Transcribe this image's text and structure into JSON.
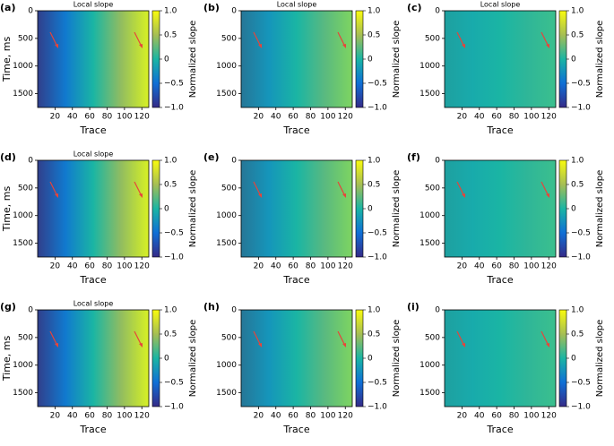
{
  "chart_data": [
    {
      "type": "heatmap",
      "label": "(a)",
      "title": "Local slope",
      "xlabel": "Trace",
      "ylabel": "Time, ms",
      "xlim": [
        0,
        128
      ],
      "xticks": [
        20,
        40,
        60,
        80,
        100,
        120
      ],
      "ylim": [
        0,
        1750
      ],
      "invert_y": true,
      "yticks": [
        0,
        500,
        1000,
        1500
      ],
      "colorbar_label": "Normalized slope",
      "clim": [
        -1,
        1
      ],
      "cticks": [
        {
          "value": 1,
          "label": "1.0"
        },
        0.5,
        0,
        {
          "value": -0.5,
          "label": "−0.5"
        },
        {
          "value": -1,
          "label": "−1.0"
        }
      ],
      "colormap": [
        "#352a87",
        "#0f6fd6",
        "#1ab5a4",
        "#a6be54",
        "#f9fb0e"
      ]
    },
    {
      "type": "heatmap",
      "label": "(b)",
      "title": "Local slope",
      "xlabel": "Trace",
      "xlim": [
        0,
        128
      ],
      "xticks": [
        20,
        40,
        60,
        80,
        100,
        120
      ],
      "ylim": [
        0,
        1750
      ],
      "invert_y": true,
      "yticks": [
        0,
        500,
        1000,
        1500
      ],
      "colorbar_label": "Normalized slope",
      "clim": [
        -1,
        1
      ],
      "cticks": [
        {
          "value": 1,
          "label": "1.0"
        },
        0.5,
        0,
        {
          "value": -0.5,
          "label": "−0.5"
        },
        {
          "value": -1,
          "label": "−1.0"
        }
      ],
      "colormap": [
        "#352a87",
        "#0f6fd6",
        "#1ab5a4",
        "#a6be54",
        "#f9fb0e"
      ]
    },
    {
      "type": "heatmap",
      "label": "(c)",
      "title": "Local slope",
      "xlabel": "Trace",
      "xlim": [
        0,
        128
      ],
      "xticks": [
        20,
        40,
        60,
        80,
        100,
        120
      ],
      "ylim": [
        0,
        1750
      ],
      "invert_y": true,
      "yticks": [
        0,
        500,
        1000,
        1500
      ],
      "colorbar_label": "Normalized slope",
      "clim": [
        -1,
        1
      ],
      "cticks": [
        {
          "value": 1,
          "label": "1.0"
        },
        0.5,
        0,
        {
          "value": -0.5,
          "label": "−0.5"
        },
        {
          "value": -1,
          "label": "−1.0"
        }
      ],
      "colormap": [
        "#352a87",
        "#0f6fd6",
        "#1ab5a4",
        "#a6be54",
        "#f9fb0e"
      ]
    },
    {
      "type": "heatmap",
      "label": "(d)",
      "title": "Local slope",
      "xlabel": "Trace",
      "ylabel": "Time, ms",
      "xlim": [
        0,
        128
      ],
      "xticks": [
        20,
        40,
        60,
        80,
        100,
        120
      ],
      "ylim": [
        0,
        1750
      ],
      "invert_y": true,
      "yticks": [
        0,
        500,
        1000,
        1500
      ],
      "colorbar_label": "Normalized slope",
      "clim": [
        -1,
        1
      ],
      "cticks": [
        {
          "value": 1,
          "label": "1.0"
        },
        0.5,
        0,
        {
          "value": -0.5,
          "label": "−0.5"
        },
        {
          "value": -1,
          "label": "−1.0"
        }
      ],
      "colormap": [
        "#352a87",
        "#0f6fd6",
        "#1ab5a4",
        "#a6be54",
        "#f9fb0e"
      ]
    },
    {
      "type": "heatmap",
      "label": "(e)",
      "xlabel": "Trace",
      "xlim": [
        0,
        128
      ],
      "xticks": [
        20,
        40,
        60,
        80,
        100,
        120
      ],
      "ylim": [
        0,
        1750
      ],
      "invert_y": true,
      "yticks": [
        0,
        500,
        1000,
        1500
      ],
      "colorbar_label": "Normalized slope",
      "clim": [
        -1,
        1
      ],
      "cticks": [
        {
          "value": 1,
          "label": "1.0"
        },
        0.5,
        0,
        {
          "value": -0.5,
          "label": "−0.5"
        },
        {
          "value": -1,
          "label": "−1.0"
        }
      ],
      "colormap": [
        "#352a87",
        "#0f6fd6",
        "#1ab5a4",
        "#a6be54",
        "#f9fb0e"
      ]
    },
    {
      "type": "heatmap",
      "label": "(f)",
      "xlabel": "Trace",
      "xlim": [
        0,
        128
      ],
      "xticks": [
        20,
        40,
        60,
        80,
        100,
        120
      ],
      "ylim": [
        0,
        1750
      ],
      "invert_y": true,
      "yticks": [
        0,
        500,
        1000,
        1500
      ],
      "colorbar_label": "Normalized slope",
      "clim": [
        -1,
        1
      ],
      "cticks": [
        {
          "value": 1,
          "label": "1.0"
        },
        0.5,
        0,
        {
          "value": -0.5,
          "label": "−0.5"
        },
        {
          "value": -1,
          "label": "−1.0"
        }
      ],
      "colormap": [
        "#352a87",
        "#0f6fd6",
        "#1ab5a4",
        "#a6be54",
        "#f9fb0e"
      ]
    },
    {
      "type": "heatmap",
      "label": "(g)",
      "title": "Local slope",
      "xlabel": "Trace",
      "ylabel": "Time, ms",
      "xlim": [
        0,
        128
      ],
      "xticks": [
        20,
        40,
        60,
        80,
        100,
        120
      ],
      "ylim": [
        0,
        1750
      ],
      "invert_y": true,
      "yticks": [
        0,
        500,
        1000,
        1500
      ],
      "colorbar_label": "Normalized slope",
      "clim": [
        -1,
        1
      ],
      "cticks": [
        {
          "value": 1,
          "label": "1.0"
        },
        0.5,
        0,
        {
          "value": -0.5,
          "label": "−0.5"
        },
        {
          "value": -1,
          "label": "−1.0"
        }
      ],
      "colormap": [
        "#352a87",
        "#0f6fd6",
        "#1ab5a4",
        "#a6be54",
        "#f9fb0e"
      ]
    },
    {
      "type": "heatmap",
      "label": "(h)",
      "xlabel": "Trace",
      "xlim": [
        0,
        128
      ],
      "xticks": [
        20,
        40,
        60,
        80,
        100,
        120
      ],
      "ylim": [
        0,
        1750
      ],
      "invert_y": true,
      "yticks": [
        0,
        500,
        1000,
        1500
      ],
      "colorbar_label": "Normalized slope",
      "clim": [
        -1,
        1
      ],
      "cticks": [
        {
          "value": 1,
          "label": "1.0"
        },
        0.5,
        0,
        {
          "value": -0.5,
          "label": "−0.5"
        },
        {
          "value": -1,
          "label": "−1.0"
        }
      ],
      "colormap": [
        "#352a87",
        "#0f6fd6",
        "#1ab5a4",
        "#a6be54",
        "#f9fb0e"
      ]
    },
    {
      "type": "heatmap",
      "label": "(i)",
      "xlabel": "Trace",
      "xlim": [
        0,
        128
      ],
      "xticks": [
        20,
        40,
        60,
        80,
        100,
        120
      ],
      "ylim": [
        0,
        1750
      ],
      "invert_y": true,
      "yticks": [
        0,
        500,
        1000,
        1500
      ],
      "colorbar_label": "Normalized slope",
      "clim": [
        -1,
        1
      ],
      "cticks": [
        {
          "value": 1,
          "label": "1.0"
        },
        0.5,
        0,
        {
          "value": -0.5,
          "label": "−0.5"
        },
        {
          "value": -1,
          "label": "−1.0"
        }
      ],
      "colormap": [
        "#352a87",
        "#0f6fd6",
        "#1ab5a4",
        "#a6be54",
        "#f9fb0e"
      ]
    }
  ]
}
